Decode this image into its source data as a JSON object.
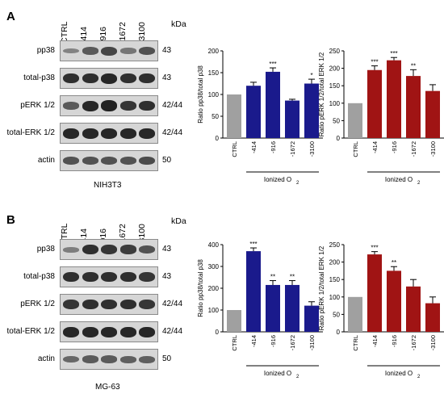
{
  "panels": [
    {
      "letter": "A",
      "cell_line": "NIH3T3",
      "lane_labels": [
        "CTRL",
        "-414",
        "-916",
        "-1672",
        "-3100"
      ],
      "kda_label": "kDa",
      "blots": [
        {
          "label": "pp38",
          "size": "43",
          "intensity": [
            0.25,
            0.55,
            0.7,
            0.35,
            0.6
          ]
        },
        {
          "label": "total-p38",
          "size": "43",
          "intensity": [
            0.85,
            0.85,
            0.9,
            0.85,
            0.85
          ]
        },
        {
          "label": "pERK 1/2",
          "size": "42/44",
          "intensity": [
            0.55,
            0.9,
            0.95,
            0.8,
            0.85
          ]
        },
        {
          "label": "total-ERK 1/2",
          "size": "42/44",
          "intensity": [
            0.9,
            0.9,
            0.9,
            0.9,
            0.9
          ]
        },
        {
          "label": "actin",
          "size": "50",
          "intensity": [
            0.6,
            0.6,
            0.6,
            0.6,
            0.65
          ]
        }
      ],
      "charts": [
        {
          "type": "bar",
          "ylabel": "Ratio pp38/total p38",
          "ylim": [
            0,
            200
          ],
          "yticks": [
            0,
            50,
            100,
            150,
            200
          ],
          "categories": [
            "CTRL",
            "-414",
            "-916",
            "-1672",
            "-3100"
          ],
          "values": [
            100,
            120,
            152,
            86,
            125
          ],
          "errors": [
            0,
            8,
            9,
            3,
            10
          ],
          "significance": [
            "",
            "",
            "***",
            "",
            "*"
          ],
          "group_label": "Ionized O",
          "group_label_sub": "2",
          "colors": [
            "#a0a0a0",
            "#1a1a8c",
            "#1a1a8c",
            "#1a1a8c",
            "#1a1a8c"
          ]
        },
        {
          "type": "bar",
          "ylabel": "Ratio pERK 1/2/total ERK 1/2",
          "ylim": [
            0,
            250
          ],
          "yticks": [
            0,
            50,
            100,
            150,
            200,
            250
          ],
          "categories": [
            "CTRL",
            "-414",
            "-916",
            "-1672",
            "-3100"
          ],
          "values": [
            100,
            195,
            223,
            178,
            135
          ],
          "errors": [
            0,
            12,
            8,
            18,
            18
          ],
          "significance": [
            "",
            "***",
            "***",
            "**",
            ""
          ],
          "group_label": "Ionized O",
          "group_label_sub": "2",
          "colors": [
            "#a0a0a0",
            "#a01414",
            "#a01414",
            "#a01414",
            "#a01414"
          ]
        }
      ]
    },
    {
      "letter": "B",
      "cell_line": "MG-63",
      "lane_labels": [
        "CTRL",
        "-414",
        "-916",
        "-1672",
        "-3100"
      ],
      "kda_label": "kDa",
      "blots": [
        {
          "label": "pp38",
          "size": "43",
          "intensity": [
            0.3,
            0.85,
            0.8,
            0.75,
            0.6
          ]
        },
        {
          "label": "total-p38",
          "size": "43",
          "intensity": [
            0.85,
            0.85,
            0.85,
            0.85,
            0.8
          ]
        },
        {
          "label": "pERK 1/2",
          "size": "42/44",
          "intensity": [
            0.8,
            0.85,
            0.85,
            0.85,
            0.8
          ]
        },
        {
          "label": "total-ERK 1/2",
          "size": "42/44",
          "intensity": [
            0.9,
            0.9,
            0.9,
            0.9,
            0.9
          ]
        },
        {
          "label": "actin",
          "size": "50",
          "intensity": [
            0.45,
            0.55,
            0.55,
            0.5,
            0.5
          ]
        }
      ],
      "charts": [
        {
          "type": "bar",
          "ylabel": "Ratio pp38/total p38",
          "ylim": [
            0,
            400
          ],
          "yticks": [
            0,
            100,
            200,
            300,
            400
          ],
          "categories": [
            "CTRL",
            "-414",
            "-916",
            "-1672",
            "-3100"
          ],
          "values": [
            100,
            370,
            215,
            215,
            120
          ],
          "errors": [
            0,
            15,
            20,
            20,
            18
          ],
          "significance": [
            "",
            "***",
            "**",
            "**",
            ""
          ],
          "group_label": "Ionized O",
          "group_label_sub": "2",
          "colors": [
            "#a0a0a0",
            "#1a1a8c",
            "#1a1a8c",
            "#1a1a8c",
            "#1a1a8c"
          ]
        },
        {
          "type": "bar",
          "ylabel": "Ratio pERK 1/2/total ERK 1/2",
          "ylim": [
            0,
            250
          ],
          "yticks": [
            0,
            50,
            100,
            150,
            200,
            250
          ],
          "categories": [
            "CTRL",
            "-414",
            "-916",
            "-1672",
            "-3100"
          ],
          "values": [
            100,
            222,
            175,
            130,
            82
          ],
          "errors": [
            0,
            8,
            12,
            20,
            18
          ],
          "significance": [
            "",
            "***",
            "**",
            "",
            ""
          ],
          "group_label": "Ionized O",
          "group_label_sub": "2",
          "colors": [
            "#a0a0a0",
            "#a01414",
            "#a01414",
            "#a01414",
            "#a01414"
          ]
        }
      ]
    }
  ],
  "chart_data": [
    {
      "type": "bar",
      "title": "",
      "ylabel": "Ratio pp38/total p38",
      "ylim": [
        0,
        200
      ],
      "categories": [
        "CTRL",
        "-414",
        "-916",
        "-1672",
        "-3100"
      ],
      "values": [
        100,
        120,
        152,
        86,
        125
      ]
    },
    {
      "type": "bar",
      "title": "",
      "ylabel": "Ratio pERK 1/2/total ERK 1/2",
      "ylim": [
        0,
        250
      ],
      "categories": [
        "CTRL",
        "-414",
        "-916",
        "-1672",
        "-3100"
      ],
      "values": [
        100,
        195,
        223,
        178,
        135
      ]
    },
    {
      "type": "bar",
      "title": "",
      "ylabel": "Ratio pp38/total p38",
      "ylim": [
        0,
        400
      ],
      "categories": [
        "CTRL",
        "-414",
        "-916",
        "-1672",
        "-3100"
      ],
      "values": [
        100,
        370,
        215,
        215,
        120
      ]
    },
    {
      "type": "bar",
      "title": "",
      "ylabel": "Ratio pERK 1/2/total ERK 1/2",
      "ylim": [
        0,
        250
      ],
      "categories": [
        "CTRL",
        "-414",
        "-916",
        "-1672",
        "-3100"
      ],
      "values": [
        100,
        222,
        175,
        130,
        82
      ]
    }
  ]
}
